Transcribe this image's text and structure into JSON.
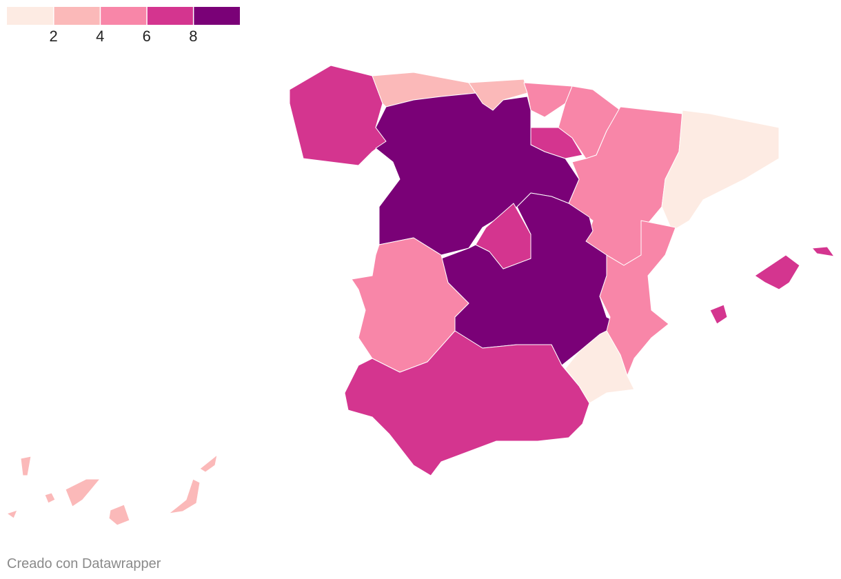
{
  "legend": {
    "colors": [
      "#fdebe3",
      "#fbb9b9",
      "#f886a8",
      "#d4358f",
      "#7a0177"
    ],
    "ticks": [
      2,
      4,
      6,
      8
    ]
  },
  "footer": "Creado con Datawrapper"
}
